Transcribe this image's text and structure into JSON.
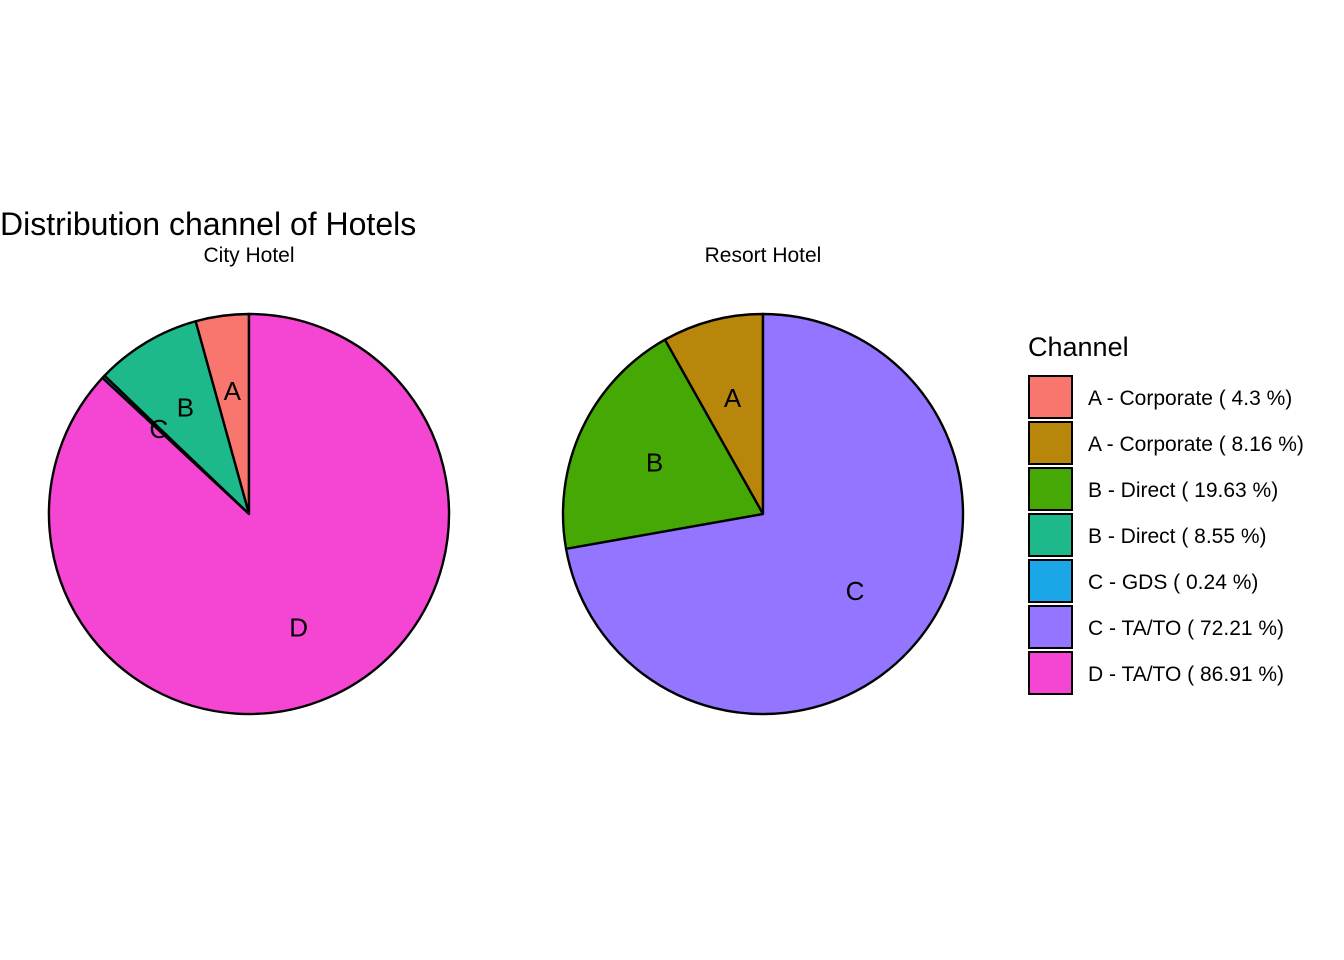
{
  "chart_data": {
    "type": "pie",
    "title": "Distribution channel of Hotels",
    "legend": {
      "title": "Channel",
      "placement": "right",
      "entries": [
        {
          "label": "A  -  Corporate ( 4.3 %)",
          "color": "#F8766D"
        },
        {
          "label": "A  -  Corporate ( 8.16 %)",
          "color": "#B8860B"
        },
        {
          "label": "B  -  Direct ( 19.63 %)",
          "color": "#45A805"
        },
        {
          "label": "B  -  Direct ( 8.55 %)",
          "color": "#1DB98A"
        },
        {
          "label": "C  -  GDS ( 0.24 %)",
          "color": "#1BA6E8"
        },
        {
          "label": "C  -  TA/TO ( 72.21 %)",
          "color": "#9475FF"
        },
        {
          "label": "D  -  TA/TO ( 86.91 %)",
          "color": "#F546D3"
        }
      ]
    },
    "panels": [
      {
        "title": "City Hotel",
        "slices": [
          {
            "label": "A",
            "value": 4.3,
            "color": "#F8766D"
          },
          {
            "label": "B",
            "value": 8.55,
            "color": "#1DB98A"
          },
          {
            "label": "C",
            "value": 0.24,
            "color": "#1BA6E8"
          },
          {
            "label": "D",
            "value": 86.91,
            "color": "#F546D3"
          }
        ]
      },
      {
        "title": "Resort Hotel",
        "slices": [
          {
            "label": "A",
            "value": 8.16,
            "color": "#B8860B"
          },
          {
            "label": "B",
            "value": 19.63,
            "color": "#45A805"
          },
          {
            "label": "C",
            "value": 72.21,
            "color": "#9475FF"
          }
        ]
      }
    ]
  }
}
